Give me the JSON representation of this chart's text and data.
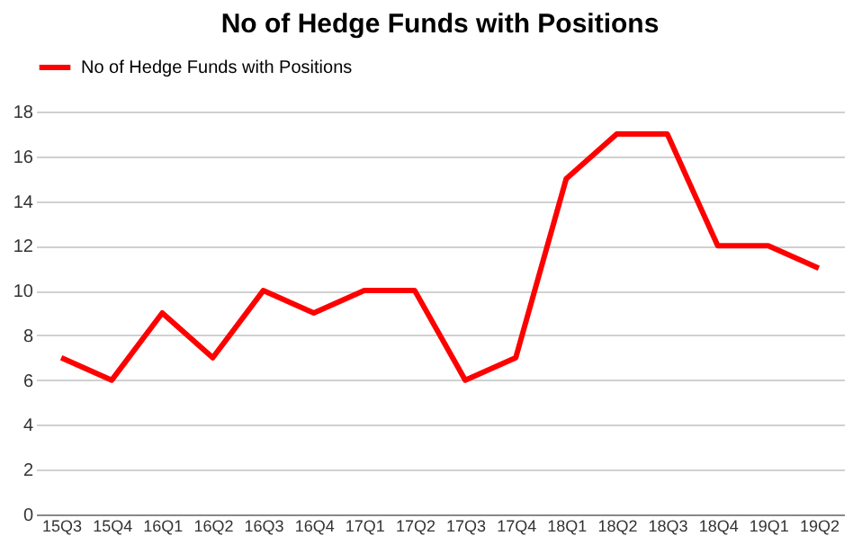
{
  "chart_data": {
    "type": "line",
    "title": "No of Hedge Funds with Positions",
    "categories": [
      "15Q3",
      "15Q4",
      "16Q1",
      "16Q2",
      "16Q3",
      "16Q4",
      "17Q1",
      "17Q2",
      "17Q3",
      "17Q4",
      "18Q1",
      "18Q2",
      "18Q3",
      "18Q4",
      "19Q1",
      "19Q2"
    ],
    "series": [
      {
        "name": "No of Hedge Funds with Positions",
        "color": "#ff0000",
        "values": [
          7,
          6,
          9,
          7,
          10,
          9,
          10,
          10,
          6,
          7,
          15,
          17,
          17,
          12,
          12,
          11
        ]
      }
    ],
    "ylim": [
      0,
      18
    ],
    "yticks": [
      0,
      2,
      4,
      6,
      8,
      10,
      12,
      14,
      16,
      18
    ],
    "grid": "y",
    "legend": "top",
    "line_style": "solid",
    "marker": "none"
  }
}
